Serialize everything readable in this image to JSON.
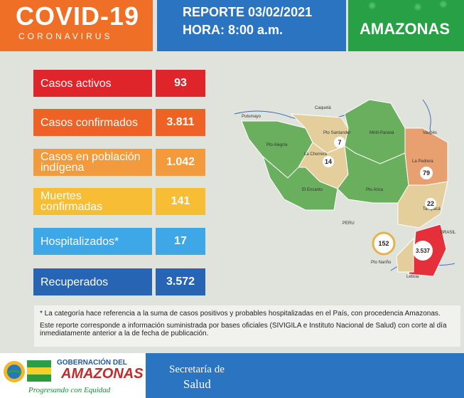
{
  "header": {
    "title": "COVID-19",
    "subtitle": "CORONAVIRUS",
    "report_date": "REPORTE 03/02/2021",
    "report_time": "HORA: 8:00 a.m.",
    "region": "AMAZONAS"
  },
  "stats": [
    {
      "label": "Casos activos",
      "value": "93",
      "label_color": "#e0252a",
      "value_color": "#e0252a"
    },
    {
      "label": "Casos confirmados",
      "value": "3.811",
      "label_color": "#ee6325",
      "value_color": "#ee6325"
    },
    {
      "label": "Casos en población indígena",
      "value": "1.042",
      "label_color": "#f39a3c",
      "value_color": "#f39a3c"
    },
    {
      "label": "Muertes confirmadas",
      "value": "141",
      "label_color": "#f7be35",
      "value_color": "#f7be35"
    },
    {
      "label": "Hospitalizados*",
      "value": "17",
      "label_color": "#3ea7e8",
      "value_color": "#3ea7e8"
    },
    {
      "label": "Recuperados",
      "value": "3.572",
      "label_color": "#2765b4",
      "value_color": "#2765b4"
    }
  ],
  "map": {
    "labels": {
      "caqueta": "Caquetá",
      "putumayo": "Putumayo",
      "vaupes": "Vaupés",
      "peru": "PERU",
      "brasil": "BRASIL",
      "pto_santander": "Pto Santander",
      "mirit_parana": "Mirití-Paraná",
      "pto_alegria": "Pto Alegría",
      "la_chorrera": "La Chorrera",
      "la_pedrera": "La Pedrera",
      "el_encanto": "El Encanto",
      "pto_arica": "Pto Arica",
      "tarapaca": "Tarapacá",
      "pto_narino": "Pto Nariño",
      "leticia": "Leticia"
    },
    "counts": {
      "pto_santander": "7",
      "la_chorrera": "14",
      "la_pedrera": "79",
      "tarapaca": "22",
      "pto_narino": "152",
      "leticia": "3.537"
    }
  },
  "notes": {
    "note1": "* La categoría hace referencia a la suma de casos positivos y probables hospitalizadas en el País, con procedencia Amazonas.",
    "note2": "Este reporte corresponde a información suministrada por bases oficiales (SIVIGILA e Instituto Nacional de Salud) con corte al día inmediatamente anterior a la de fecha de publicación."
  },
  "footer": {
    "gov_line1": "GOBERNACIÓN DEL",
    "gov_line2": "AMAZONAS",
    "slogan": "Progresando con Equidad",
    "secretaria": "Secretaría de",
    "salud": "Salud"
  },
  "colors": {
    "header_orange": "#ee6f25",
    "header_blue": "#2b74c1",
    "header_green": "#27a046",
    "map_green": "#6aaf5d",
    "map_beige": "#e4cf9c",
    "map_orange": "#e9a070",
    "map_red": "#e5303c"
  }
}
